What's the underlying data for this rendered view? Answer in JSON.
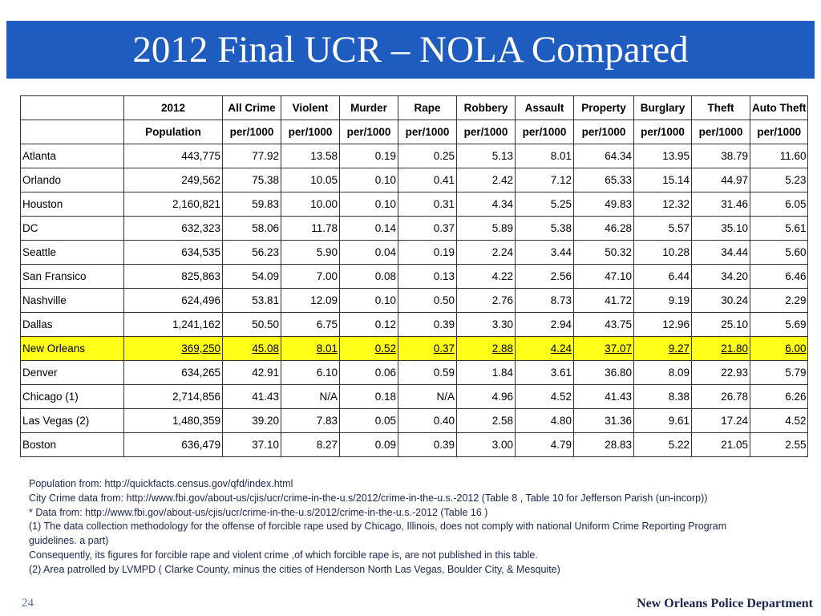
{
  "title": "2012 Final UCR – NOLA Compared",
  "table": {
    "header_row1": [
      "",
      "2012",
      "All Crime",
      "Violent",
      "Murder",
      "Rape",
      "Robbery",
      "Assault",
      "Property",
      "Burglary",
      "Theft",
      "Auto Theft"
    ],
    "header_row2": [
      "",
      "Population",
      "per/1000",
      "per/1000",
      "per/1000",
      "per/1000",
      "per/1000",
      "per/1000",
      "per/1000",
      "per/1000",
      "per/1000",
      "per/1000"
    ],
    "rows": [
      {
        "cells": [
          "Atlanta",
          "443,775",
          "77.92",
          "13.58",
          "0.19",
          "0.25",
          "5.13",
          "8.01",
          "64.34",
          "13.95",
          "38.79",
          "11.60"
        ]
      },
      {
        "cells": [
          "Orlando",
          "249,562",
          "75.38",
          "10.05",
          "0.10",
          "0.41",
          "2.42",
          "7.12",
          "65.33",
          "15.14",
          "44.97",
          "5.23"
        ]
      },
      {
        "cells": [
          "Houston",
          "2,160,821",
          "59.83",
          "10.00",
          "0.10",
          "0.31",
          "4.34",
          "5.25",
          "49.83",
          "12.32",
          "31.46",
          "6.05"
        ]
      },
      {
        "cells": [
          "DC",
          "632,323",
          "58.06",
          "11.78",
          "0.14",
          "0.37",
          "5.89",
          "5.38",
          "46.28",
          "5.57",
          "35.10",
          "5.61"
        ]
      },
      {
        "cells": [
          "Seattle",
          "634,535",
          "56.23",
          "5.90",
          "0.04",
          "0.19",
          "2.24",
          "3.44",
          "50.32",
          "10.28",
          "34.44",
          "5.60"
        ]
      },
      {
        "cells": [
          "San Fransico",
          "825,863",
          "54.09",
          "7.00",
          "0.08",
          "0.13",
          "4.22",
          "2.56",
          "47.10",
          "6.44",
          "34.20",
          "6.46"
        ]
      },
      {
        "cells": [
          "Nashville",
          "624,496",
          "53.81",
          "12.09",
          "0.10",
          "0.50",
          "2.76",
          "8.73",
          "41.72",
          "9.19",
          "30.24",
          "2.29"
        ]
      },
      {
        "cells": [
          "Dallas",
          "1,241,162",
          "50.50",
          "6.75",
          "0.12",
          "0.39",
          "3.30",
          "2.94",
          "43.75",
          "12.96",
          "25.10",
          "5.69"
        ]
      },
      {
        "cells": [
          "New Orleans",
          "369,250",
          "45.08",
          "8.01",
          "0.52",
          "0.37",
          "2.88",
          "4.24",
          "37.07",
          "9.27",
          "21.80",
          "6.00"
        ],
        "highlighted": true
      },
      {
        "cells": [
          "Denver",
          "634,265",
          "42.91",
          "6.10",
          "0.06",
          "0.59",
          "1.84",
          "3.61",
          "36.80",
          "8.09",
          "22.93",
          "5.79"
        ]
      },
      {
        "cells": [
          "Chicago (1)",
          "2,714,856",
          "41.43",
          "N/A",
          "0.18",
          "N/A",
          "4.96",
          "4.52",
          "41.43",
          "8.38",
          "26.78",
          "6.26"
        ]
      },
      {
        "cells": [
          "Las Vegas (2)",
          "1,480,359",
          "39.20",
          "7.83",
          "0.05",
          "0.40",
          "2.58",
          "4.80",
          "31.36",
          "9.61",
          "17.24",
          "4.52"
        ]
      },
      {
        "cells": [
          "Boston",
          "636,479",
          "37.10",
          "8.27",
          "0.09",
          "0.39",
          "3.00",
          "4.79",
          "28.83",
          "5.22",
          "21.05",
          "2.55"
        ]
      }
    ],
    "highlight_color": "#ffff1a"
  },
  "notes": [
    "Population from:   http://quickfacts.census.gov/qfd/index.html",
    "City Crime data from:   http://www.fbi.gov/about-us/cjis/ucr/crime-in-the-u.s/2012/crime-in-the-u.s.-2012  (Table 8 , Table 10 for Jefferson Parish (un-incorp))",
    "* Data from:   http://www.fbi.gov/about-us/cjis/ucr/crime-in-the-u.s/2012/crime-in-the-u.s.-2012  (Table 16 )",
    "(1) The data collection methodology for the offense of forcible rape used by Chicago, Illinois, does not comply with national Uniform Crime Reporting Program",
    "guidelines.  a part)",
    "Consequently, its figures for forcible rape and violent crime ,of which forcible rape is, are not published in this table.",
    "(2) Area patrolled by LVMPD ( Clarke County, minus the cities of Henderson North Las Vegas, Boulder City, & Mesquite)"
  ],
  "footer": {
    "page_number": "24",
    "organization": "New Orleans Police Department"
  },
  "colors": {
    "title_bar": "#1f5cc0",
    "notes_text": "#1a2550"
  }
}
